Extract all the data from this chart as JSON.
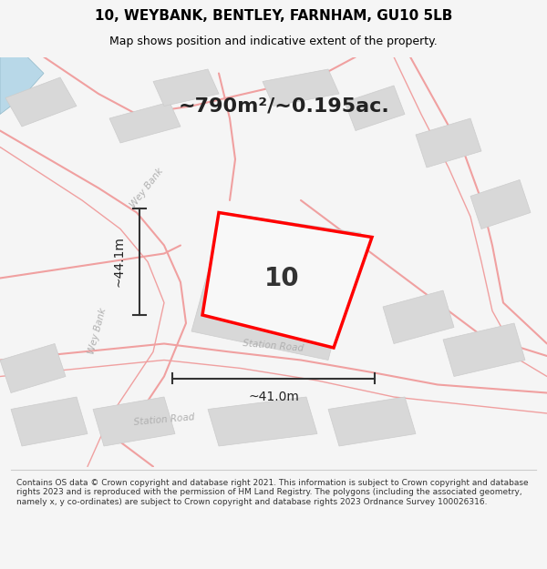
{
  "title": "10, WEYBANK, BENTLEY, FARNHAM, GU10 5LB",
  "subtitle": "Map shows position and indicative extent of the property.",
  "footer": "Contains OS data © Crown copyright and database right 2021. This information is subject to Crown copyright and database rights 2023 and is reproduced with the permission of HM Land Registry. The polygons (including the associated geometry, namely x, y co-ordinates) are subject to Crown copyright and database rights 2023 Ordnance Survey 100026316.",
  "area_label": "~790m²/~0.195ac.",
  "width_label": "~41.0m",
  "height_label": "~44.1m",
  "plot_number": "10",
  "bg_color": "#f5f5f5",
  "map_bg": "#ffffff",
  "plot_color": "#ff0000",
  "road_color": "#f0a0a0",
  "building_color": "#d8d8d8",
  "building_edge": "#cccccc",
  "water_color": "#b8d8e8",
  "title_fontsize": 11,
  "subtitle_fontsize": 9,
  "footer_fontsize": 6.5,
  "area_label_fontsize": 16,
  "plot_num_fontsize": 20,
  "dim_fontsize": 10,
  "road_label_color": "#b0b0b0"
}
